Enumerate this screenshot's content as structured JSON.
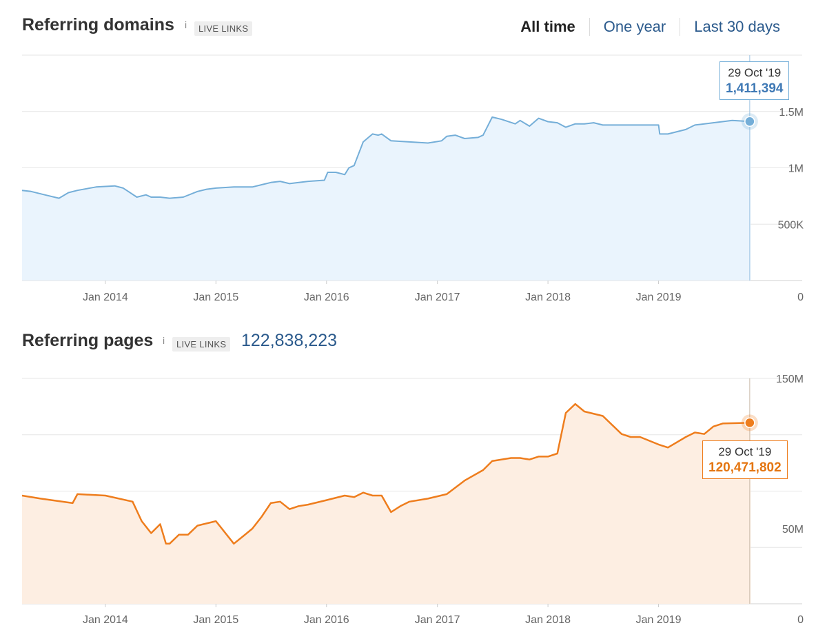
{
  "header": {
    "range_options": [
      "All time",
      "One year",
      "Last 30 days"
    ],
    "active_range": "All time"
  },
  "panels": [
    {
      "title": "Referring domains",
      "info_icon": "i",
      "badge": "LIVE LINKS",
      "total": "",
      "color": "#74aed8",
      "fill": "#eaf4fd",
      "tooltip": {
        "date": "29 Oct '19",
        "value": "1,411,394"
      }
    },
    {
      "title": "Referring pages",
      "info_icon": "i",
      "badge": "LIVE LINKS",
      "total": "122,838,223",
      "color": "#ee7d1d",
      "fill": "#fdeee2",
      "tooltip": {
        "date": "29 Oct '19",
        "value": "120,471,802"
      }
    }
  ],
  "chart_data": [
    {
      "type": "area",
      "title": "Referring domains",
      "xlabel": "",
      "ylabel": "",
      "x_ticks": [
        "Jan 2014",
        "Jan 2015",
        "Jan 2016",
        "Jan 2017",
        "Jan 2018",
        "Jan 2019"
      ],
      "y_ticks": [
        {
          "value": 0,
          "label": "0"
        },
        {
          "value": 500000,
          "label": "500K"
        },
        {
          "value": 1000000,
          "label": "1M"
        },
        {
          "value": 1500000,
          "label": "1.5M"
        }
      ],
      "ylim": [
        0,
        2000000
      ],
      "xlim": [
        "2013-04-01",
        "2020-01-01"
      ],
      "grid": true,
      "legend": "none",
      "series": [
        {
          "x": [
            "2013-04-01",
            "2013-05-01",
            "2013-06-15",
            "2013-08-01",
            "2013-09-01",
            "2013-10-01",
            "2013-12-01",
            "2014-02-01",
            "2014-03-01",
            "2014-04-15",
            "2014-05-15",
            "2014-06-01",
            "2014-07-01",
            "2014-08-01",
            "2014-09-15",
            "2014-11-01",
            "2014-12-01",
            "2015-01-01",
            "2015-03-01",
            "2015-05-01",
            "2015-06-01",
            "2015-07-01",
            "2015-08-01",
            "2015-09-01",
            "2015-11-01",
            "2015-12-25",
            "2016-01-05",
            "2016-02-01",
            "2016-03-01",
            "2016-03-15",
            "2016-04-01",
            "2016-05-01",
            "2016-06-01",
            "2016-06-20",
            "2016-07-01",
            "2016-08-01",
            "2016-10-01",
            "2016-12-01",
            "2017-01-15",
            "2017-02-01",
            "2017-03-01",
            "2017-04-01",
            "2017-05-15",
            "2017-06-01",
            "2017-07-01",
            "2017-08-01",
            "2017-09-15",
            "2017-10-01",
            "2017-11-01",
            "2017-12-01",
            "2018-01-01",
            "2018-02-01",
            "2018-03-01",
            "2018-04-01",
            "2018-05-01",
            "2018-06-01",
            "2018-07-01",
            "2018-09-01",
            "2018-11-01",
            "2019-01-01",
            "2019-01-05",
            "2019-02-01",
            "2019-04-01",
            "2019-05-01",
            "2019-07-01",
            "2019-09-01",
            "2019-10-29",
            "2019-11-01"
          ],
          "y": [
            800000,
            790000,
            760000,
            730000,
            780000,
            800000,
            830000,
            840000,
            820000,
            740000,
            760000,
            740000,
            740000,
            730000,
            740000,
            790000,
            810000,
            820000,
            830000,
            830000,
            850000,
            870000,
            880000,
            860000,
            880000,
            890000,
            960000,
            960000,
            940000,
            1000000,
            1020000,
            1230000,
            1300000,
            1290000,
            1300000,
            1240000,
            1230000,
            1220000,
            1240000,
            1280000,
            1290000,
            1260000,
            1270000,
            1290000,
            1450000,
            1430000,
            1390000,
            1420000,
            1370000,
            1440000,
            1410000,
            1400000,
            1360000,
            1390000,
            1390000,
            1400000,
            1380000,
            1380000,
            1380000,
            1380000,
            1300000,
            1300000,
            1340000,
            1380000,
            1400000,
            1420000,
            1411394,
            1411394
          ]
        }
      ]
    },
    {
      "type": "area",
      "title": "Referring pages",
      "xlabel": "",
      "ylabel": "",
      "x_ticks": [
        "Jan 2014",
        "Jan 2015",
        "Jan 2016",
        "Jan 2017",
        "Jan 2018",
        "Jan 2019"
      ],
      "y_ticks": [
        {
          "value": 0,
          "label": "0"
        },
        {
          "value": 50000000,
          "label": "50M"
        },
        {
          "value": 150000000,
          "label": "150M"
        }
      ],
      "ylim": [
        0,
        150000000
      ],
      "xlim": [
        "2013-04-01",
        "2020-01-01"
      ],
      "grid": true,
      "legend": "none",
      "series": [
        {
          "x": [
            "2013-04-01",
            "2013-06-01",
            "2013-09-15",
            "2013-10-01",
            "2014-01-01",
            "2014-04-01",
            "2014-05-01",
            "2014-06-01",
            "2014-07-01",
            "2014-07-20",
            "2014-08-01",
            "2014-09-01",
            "2014-10-01",
            "2014-11-01",
            "2015-01-01",
            "2015-03-01",
            "2015-04-01",
            "2015-05-01",
            "2015-06-01",
            "2015-07-01",
            "2015-08-01",
            "2015-09-01",
            "2015-10-01",
            "2015-11-01",
            "2016-01-01",
            "2016-03-01",
            "2016-04-01",
            "2016-05-01",
            "2016-06-01",
            "2016-07-01",
            "2016-08-01",
            "2016-09-01",
            "2016-10-01",
            "2016-12-01",
            "2017-02-01",
            "2017-04-01",
            "2017-06-01",
            "2017-07-01",
            "2017-09-01",
            "2017-10-01",
            "2017-11-01",
            "2017-12-01",
            "2018-01-01",
            "2018-02-01",
            "2018-03-01",
            "2018-04-01",
            "2018-05-01",
            "2018-07-01",
            "2018-09-01",
            "2018-10-01",
            "2018-11-01",
            "2019-01-01",
            "2019-02-01",
            "2019-04-01",
            "2019-05-01",
            "2019-06-01",
            "2019-07-01",
            "2019-08-01",
            "2019-10-29",
            "2019-11-01"
          ],
          "y": [
            72000000,
            70000000,
            67000000,
            73000000,
            72000000,
            68000000,
            55000000,
            47000000,
            53000000,
            40000000,
            40000000,
            46000000,
            46000000,
            52000000,
            55000000,
            40000000,
            45000000,
            50000000,
            58000000,
            67000000,
            68000000,
            63000000,
            65000000,
            66000000,
            69000000,
            72000000,
            71000000,
            74000000,
            72000000,
            72000000,
            61000000,
            65000000,
            68000000,
            70000000,
            73000000,
            82000000,
            89000000,
            95000000,
            97000000,
            97000000,
            96000000,
            98000000,
            98000000,
            100000000,
            127000000,
            133000000,
            128000000,
            125000000,
            113000000,
            111000000,
            111000000,
            106000000,
            104000000,
            111000000,
            114000000,
            113000000,
            118000000,
            120000000,
            120471802,
            120471802
          ]
        }
      ]
    }
  ]
}
